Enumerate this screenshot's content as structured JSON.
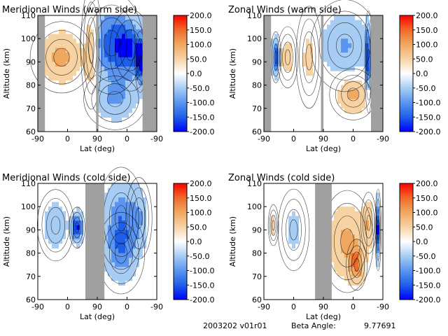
{
  "figure": {
    "footer": {
      "date_version": "2003202 v01r01",
      "beta_label": "Beta Angle:",
      "beta_value": "9.77691"
    }
  },
  "colors": {
    "data_gap": "#a0a0a0",
    "contour_line": "#000000",
    "colormap_stops": [
      "#0000ff",
      "#1f5fe8",
      "#5b95f0",
      "#a8cdf5",
      "#ffffff",
      "#f7d3a4",
      "#f0a860",
      "#f06a2a",
      "#ff0000"
    ]
  },
  "chart_data": [
    {
      "type": "heatmap",
      "title": "Meridional Winds (warm side)",
      "xlabel": "Lat (deg)",
      "ylabel": "Altitude (km)",
      "x_ticks": [
        "-90",
        "0",
        "90",
        "0",
        "-90"
      ],
      "y_ticks": [
        60,
        70,
        80,
        90,
        100,
        110
      ],
      "ylim": [
        60,
        110
      ],
      "colorbar": {
        "ticks": [
          "200.0",
          "150.0",
          "100.0",
          "50.0",
          "0.0",
          "-50.0",
          "-100.0",
          "-150.0",
          "-200.0"
        ],
        "range": [
          -200,
          200
        ]
      },
      "gaps": [
        [
          0.0,
          0.06
        ],
        [
          0.49,
          0.51
        ],
        [
          0.88,
          1.0
        ]
      ],
      "blobs": [
        {
          "x": 0.2,
          "alt": 92,
          "sx": 0.12,
          "sa": 7,
          "value": 90
        },
        {
          "x": 0.45,
          "alt": 96,
          "sx": 0.04,
          "sa": 12,
          "value": 90
        },
        {
          "x": 0.62,
          "alt": 98,
          "sx": 0.12,
          "sa": 10,
          "value": -150
        },
        {
          "x": 0.78,
          "alt": 95,
          "sx": 0.08,
          "sa": 8,
          "value": -130
        },
        {
          "x": 0.65,
          "alt": 74,
          "sx": 0.12,
          "sa": 6,
          "value": -80
        },
        {
          "x": 0.86,
          "alt": 90,
          "sx": 0.02,
          "sa": 6,
          "value": -190
        }
      ]
    },
    {
      "type": "heatmap",
      "title": "Zonal Winds (warm side)",
      "xlabel": "Lat (deg)",
      "ylabel": "Altitude (km)",
      "x_ticks": [
        "-90",
        "0",
        "90",
        "0",
        "-90"
      ],
      "y_ticks": [
        60,
        70,
        80,
        90,
        100,
        110
      ],
      "ylim": [
        60,
        110
      ],
      "colorbar": {
        "ticks": [
          "200.0",
          "150.0",
          "100.0",
          "50.0",
          "0.0",
          "-50.0",
          "-100.0",
          "-150.0",
          "-200.0"
        ],
        "range": [
          -200,
          200
        ]
      },
      "gaps": [
        [
          0.0,
          0.06
        ],
        [
          0.48,
          0.5
        ],
        [
          0.9,
          1.0
        ]
      ],
      "blobs": [
        {
          "x": 0.1,
          "alt": 92,
          "sx": 0.02,
          "sa": 5,
          "value": -180
        },
        {
          "x": 0.2,
          "alt": 92,
          "sx": 0.04,
          "sa": 6,
          "value": 50
        },
        {
          "x": 0.38,
          "alt": 92,
          "sx": 0.05,
          "sa": 10,
          "value": 40
        },
        {
          "x": 0.68,
          "alt": 97,
          "sx": 0.13,
          "sa": 9,
          "value": -80
        },
        {
          "x": 0.75,
          "alt": 76,
          "sx": 0.09,
          "sa": 5,
          "value": 90
        },
        {
          "x": 0.88,
          "alt": 90,
          "sx": 0.015,
          "sa": 10,
          "value": -180
        }
      ]
    },
    {
      "type": "heatmap",
      "title": "Meridional Winds (cold side)",
      "xlabel": "Lat (deg)",
      "ylabel": "Altitude (km)",
      "x_ticks": [
        "-90",
        "0",
        "90",
        "0",
        "-90"
      ],
      "y_ticks": [
        60,
        70,
        80,
        90,
        100,
        110
      ],
      "ylim": [
        60,
        110
      ],
      "colorbar": {
        "ticks": [
          "200.0",
          "150.0",
          "100.0",
          "50.0",
          "0.0",
          "-50.0",
          "-100.0",
          "-150.0",
          "-200.0"
        ],
        "range": [
          -200,
          200
        ]
      },
      "gaps": [
        [
          0.4,
          0.56
        ]
      ],
      "blobs": [
        {
          "x": 0.15,
          "alt": 92,
          "sx": 0.07,
          "sa": 7,
          "value": -60
        },
        {
          "x": 0.33,
          "alt": 91,
          "sx": 0.03,
          "sa": 4,
          "value": -190
        },
        {
          "x": 0.7,
          "alt": 95,
          "sx": 0.09,
          "sa": 10,
          "value": -110
        },
        {
          "x": 0.7,
          "alt": 80,
          "sx": 0.09,
          "sa": 8,
          "value": -90
        },
        {
          "x": 0.85,
          "alt": 95,
          "sx": 0.05,
          "sa": 8,
          "value": -60
        }
      ]
    },
    {
      "type": "heatmap",
      "title": "Zonal Winds (cold side)",
      "xlabel": "Lat (deg)",
      "ylabel": "Altitude (km)",
      "x_ticks": [
        "-90",
        "0",
        "90",
        "0",
        "-90"
      ],
      "y_ticks": [
        60,
        70,
        80,
        90,
        100,
        110
      ],
      "ylim": [
        60,
        110
      ],
      "colorbar": {
        "ticks": [
          "200.0",
          "150.0",
          "100.0",
          "50.0",
          "0.0",
          "-50.0",
          "-100.0",
          "-150.0",
          "-200.0"
        ],
        "range": [
          -200,
          200
        ]
      },
      "gaps": [
        [
          0.43,
          0.57
        ]
      ],
      "blobs": [
        {
          "x": 0.08,
          "alt": 92,
          "sx": 0.02,
          "sa": 4,
          "value": 40
        },
        {
          "x": 0.25,
          "alt": 90,
          "sx": 0.06,
          "sa": 8,
          "value": -40
        },
        {
          "x": 0.7,
          "alt": 85,
          "sx": 0.1,
          "sa": 10,
          "value": 90
        },
        {
          "x": 0.78,
          "alt": 75,
          "sx": 0.04,
          "sa": 5,
          "value": 110
        },
        {
          "x": 0.88,
          "alt": 93,
          "sx": 0.03,
          "sa": 6,
          "value": 70
        },
        {
          "x": 0.96,
          "alt": 90,
          "sx": 0.012,
          "sa": 8,
          "value": -200
        }
      ]
    }
  ]
}
